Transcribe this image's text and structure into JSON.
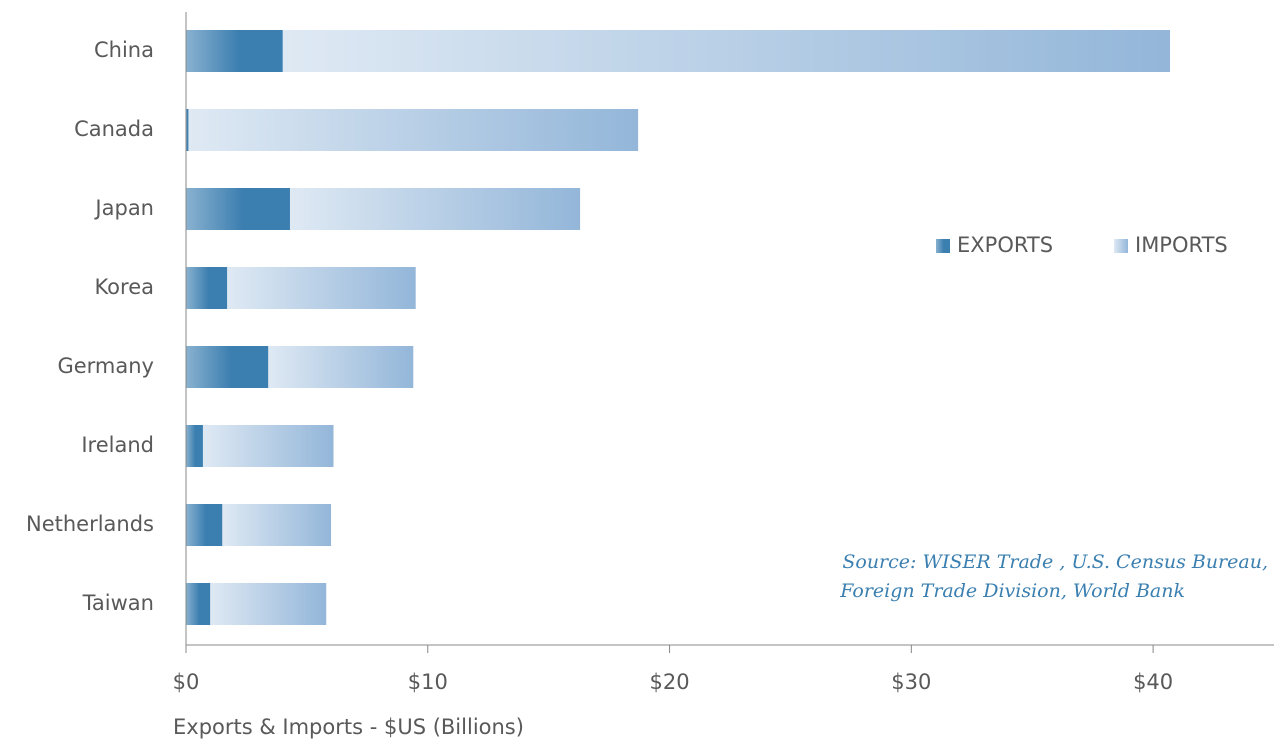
{
  "chart_data": {
    "type": "stacked-bar-horizontal",
    "categories": [
      "China",
      "Canada",
      "Japan",
      "Korea",
      "Germany",
      "Ireland",
      "Netherlands",
      "Taiwan"
    ],
    "series": [
      {
        "name": "EXPORTS",
        "color": "#3b7eb0",
        "values": [
          4.0,
          0.1,
          4.3,
          1.7,
          3.4,
          0.7,
          1.5,
          1.0
        ]
      },
      {
        "name": "IMPORTS",
        "color": "#93b6d9",
        "values": [
          36.7,
          18.6,
          12.0,
          7.8,
          6.0,
          5.4,
          4.5,
          4.8
        ]
      }
    ],
    "xlim": [
      0,
      45
    ],
    "xticks": [
      {
        "value": 0,
        "label": "$0"
      },
      {
        "value": 10,
        "label": "$10"
      },
      {
        "value": 20,
        "label": "$20"
      },
      {
        "value": 30,
        "label": "$30"
      },
      {
        "value": 40,
        "label": "$40"
      }
    ],
    "xlabel": "Exports & Imports - $US (Billions)",
    "annotation": [
      "Source: WISER Trade , U.S. Census Bureau,",
      "Foreign Trade Division, World Bank"
    ],
    "legend": "right"
  }
}
